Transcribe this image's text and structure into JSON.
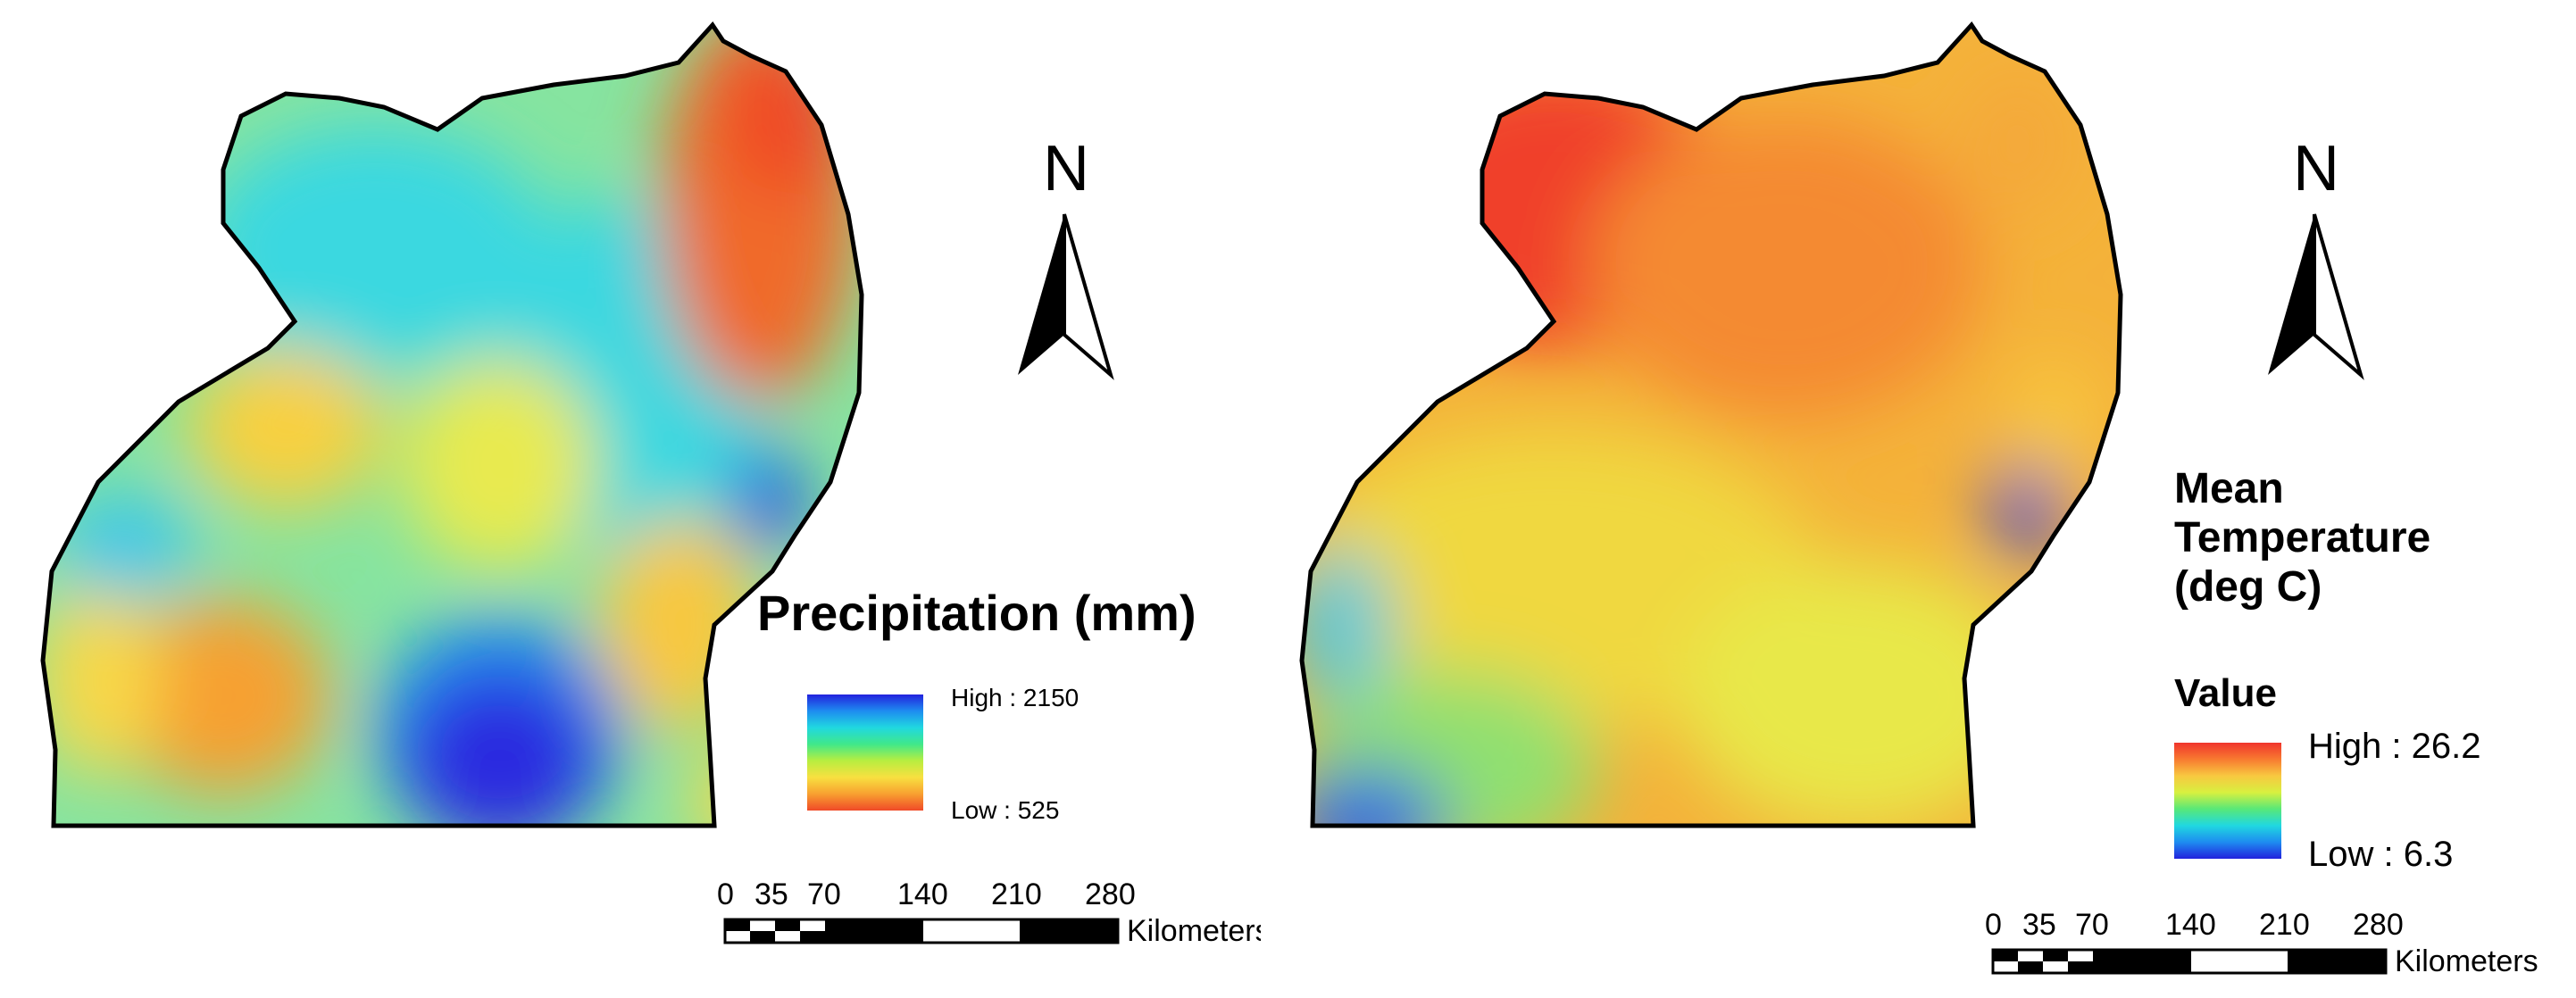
{
  "maps": [
    {
      "legend": {
        "title": "Precipitation (mm)",
        "subtitle": "",
        "high_label": "High : 2150",
        "low_label": "Low : 525",
        "high": 2150,
        "low": 525,
        "ramp_colors": [
          "#2222dd",
          "#1e8cf0",
          "#20d8e0",
          "#40e88a",
          "#b8ee40",
          "#f8e040",
          "#f8a030",
          "#f04a28"
        ]
      },
      "north_label": "N",
      "scale_bar": {
        "ticks": [
          "0",
          "35",
          "70",
          "140",
          "210",
          "280"
        ],
        "units": "Kilometers"
      }
    },
    {
      "legend": {
        "title_lines": [
          "Mean",
          "Temperature",
          "(deg C)"
        ],
        "subtitle": "Value",
        "high_label": "High : 26.2",
        "low_label": "Low : 6.3",
        "high": 26.2,
        "low": 6.3,
        "ramp_colors": [
          "#f0342c",
          "#f87a30",
          "#f8c840",
          "#d8f040",
          "#58e878",
          "#20d8e0",
          "#1e8cf0",
          "#2222dd"
        ]
      },
      "north_label": "N",
      "scale_bar": {
        "ticks": [
          "0",
          "35",
          "70",
          "140",
          "210",
          "280"
        ],
        "units": "Kilometers"
      }
    }
  ],
  "colors": {
    "outline": "#000000",
    "precip_base": "#7fe3a8",
    "temp_base": "#f6b43a"
  }
}
